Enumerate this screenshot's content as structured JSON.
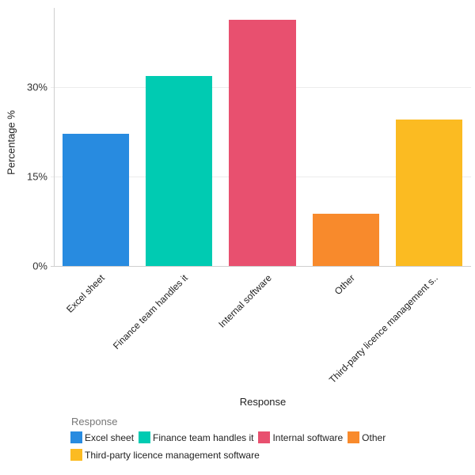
{
  "chart_data": {
    "type": "bar",
    "title": "",
    "xlabel": "Response",
    "ylabel": "Percentage %",
    "ylim": [
      0,
      43.3
    ],
    "yticks": [
      "0%",
      "15%",
      "30%"
    ],
    "ytick_values": [
      0,
      15,
      30
    ],
    "grid": true,
    "categories": [
      "Excel sheet",
      "Finance team handles it",
      "Internal software",
      "Other",
      "Third-party licence management software"
    ],
    "category_tick_labels": [
      "Excel sheet",
      "Finance team handles it",
      "Internal software",
      "Other",
      "Third-party licence management s.."
    ],
    "values": [
      22.2,
      31.8,
      41.3,
      8.8,
      24.6
    ],
    "colors": [
      "#288BE0",
      "#00CBB2",
      "#E8506F",
      "#F88A2C",
      "#FBBB22"
    ],
    "legend": {
      "title": "Response",
      "position": "bottom",
      "entries": [
        "Excel sheet",
        "Finance team handles it",
        "Internal software",
        "Other",
        "Third-party licence management software"
      ]
    }
  }
}
